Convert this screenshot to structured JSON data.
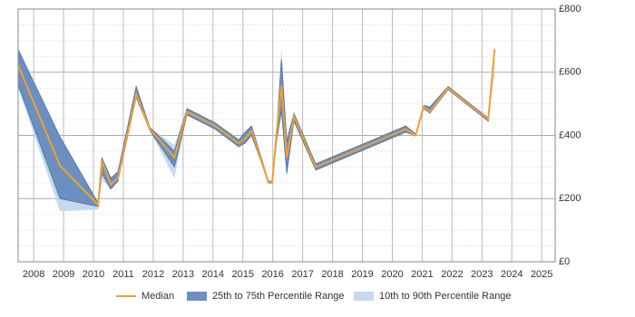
{
  "chart_data": {
    "type": "line",
    "x": [
      2007.48,
      2008.88,
      2010.16,
      2010.28,
      2010.58,
      2010.82,
      2011.43,
      2011.89,
      2012.71,
      2013.13,
      2014.07,
      2014.86,
      2015.07,
      2015.29,
      2015.86,
      2015.98,
      2016.14,
      2016.29,
      2016.47,
      2016.71,
      2017.44,
      2020.45,
      2020.78,
      2021.05,
      2021.26,
      2021.87,
      2023.21,
      2023.42
    ],
    "series": [
      {
        "name": "Median",
        "color": "#f0a030",
        "values": [
          622,
          305,
          180,
          320,
          245,
          265,
          530,
          420,
          330,
          475,
          430,
          375,
          390,
          415,
          250,
          250,
          420,
          560,
          330,
          460,
          300,
          420,
          400,
          490,
          475,
          550,
          450,
          670
        ]
      }
    ],
    "bands": [
      {
        "name": "10th to 90th Percentile Range",
        "color": "#c6d9ee",
        "lower": [
          550,
          160,
          165,
          260,
          230,
          255,
          520,
          415,
          265,
          465,
          420,
          360,
          375,
          400,
          250,
          250,
          390,
          460,
          270,
          445,
          290,
          410,
          400,
          485,
          470,
          545,
          445,
          590
        ],
        "upper": [
          680,
          400,
          190,
          330,
          265,
          285,
          555,
          425,
          370,
          485,
          440,
          390,
          410,
          430,
          255,
          255,
          430,
          680,
          400,
          470,
          310,
          430,
          405,
          495,
          490,
          555,
          455,
          675
        ]
      },
      {
        "name": "25th to 75th Percentile Range",
        "color": "#6b8fc0",
        "lower": [
          560,
          200,
          175,
          280,
          230,
          255,
          520,
          415,
          300,
          465,
          420,
          365,
          375,
          400,
          250,
          250,
          390,
          480,
          280,
          445,
          290,
          410,
          400,
          485,
          470,
          545,
          445,
          660
        ],
        "upper": [
          670,
          395,
          185,
          330,
          265,
          285,
          555,
          425,
          350,
          485,
          440,
          385,
          410,
          430,
          255,
          255,
          430,
          640,
          380,
          470,
          310,
          430,
          405,
          495,
          490,
          555,
          455,
          675
        ]
      }
    ],
    "xlim": [
      2007.48,
      2025.45
    ],
    "xticks": [
      2008,
      2009,
      2010,
      2011,
      2012,
      2013,
      2014,
      2015,
      2016,
      2017,
      2018,
      2019,
      2020,
      2021,
      2022,
      2023,
      2024,
      2025
    ],
    "ylim": [
      0,
      800
    ],
    "yticks": [
      {
        "value": 0,
        "label": "£0"
      },
      {
        "value": 200,
        "label": "£200"
      },
      {
        "value": 400,
        "label": "£400"
      },
      {
        "value": 600,
        "label": "£600"
      },
      {
        "value": 800,
        "label": "£800"
      }
    ],
    "y_minor_ticks": [
      50,
      100,
      150,
      250,
      300,
      350,
      450,
      500,
      550,
      650,
      700,
      750
    ],
    "grid": true
  }
}
